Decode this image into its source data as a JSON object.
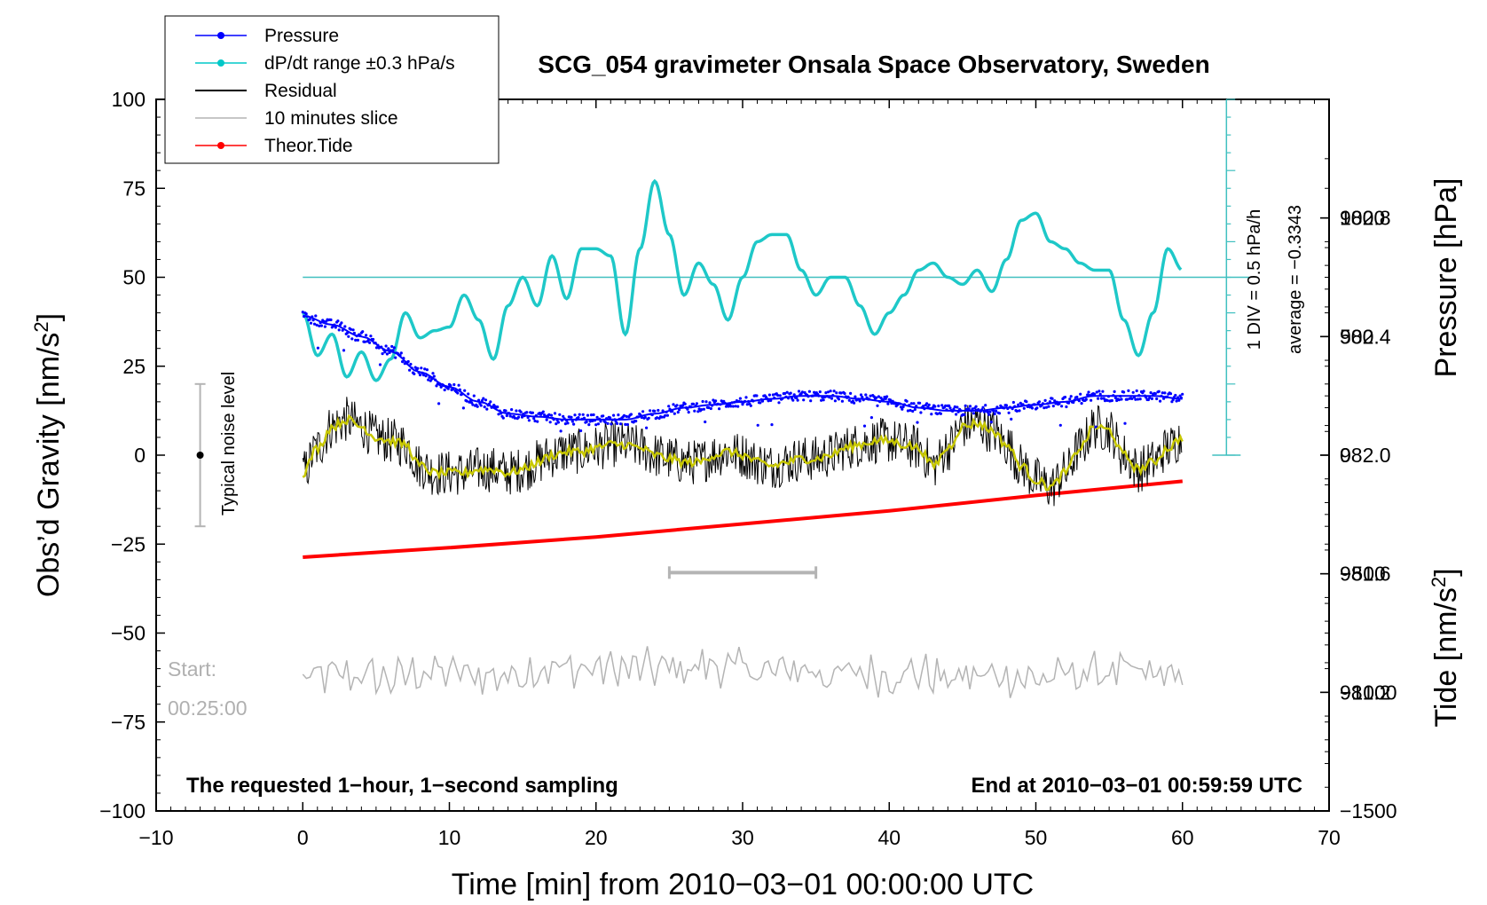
{
  "chart_data": {
    "type": "line",
    "title": "SCG_054 gravimeter Onsala Space Observatory, Sweden",
    "xlabel": "Time [min] from 2010−03−01 00:00:00 UTC",
    "ylabel_left_text": "Obs’d Gravity [nm/s",
    "ylabel_left_sup": "2",
    "ylabel_left_close": "]",
    "ylabel_right_pressure": "Pressure [hPa]",
    "ylabel_right_tide_text": "Tide [nm/s",
    "ylabel_right_tide_sup": "2",
    "ylabel_right_tide_close": "]",
    "xlim": [
      -10,
      70
    ],
    "ylim_left": [
      -100,
      100
    ],
    "ylim_pressure": [
      980.8,
      983.2
    ],
    "ylim_tide": [
      -1500,
      1500
    ],
    "x_ticks": [
      {
        "v": -10,
        "label": "−10"
      },
      {
        "v": 0,
        "label": "0"
      },
      {
        "v": 10,
        "label": "10"
      },
      {
        "v": 20,
        "label": "20"
      },
      {
        "v": 30,
        "label": "30"
      },
      {
        "v": 40,
        "label": "40"
      },
      {
        "v": 50,
        "label": "50"
      },
      {
        "v": 60,
        "label": "60"
      },
      {
        "v": 70,
        "label": "70"
      }
    ],
    "y_ticks_left": [
      {
        "v": 100,
        "label": "100"
      },
      {
        "v": 75,
        "label": "75"
      },
      {
        "v": 50,
        "label": "50"
      },
      {
        "v": 25,
        "label": "25"
      },
      {
        "v": 0,
        "label": "0"
      },
      {
        "v": -25,
        "label": "−25"
      },
      {
        "v": -50,
        "label": "−50"
      },
      {
        "v": -75,
        "label": "−75"
      },
      {
        "v": -100,
        "label": "−100"
      }
    ],
    "y_ticks_pressure": [
      {
        "v": 982.8,
        "label": "982.8"
      },
      {
        "v": 982.4,
        "label": "982.4"
      },
      {
        "v": 982.0,
        "label": "982.0"
      },
      {
        "v": 981.6,
        "label": "981.6"
      },
      {
        "v": 981.2,
        "label": "981.2"
      }
    ],
    "y_ticks_tide": [
      {
        "v": 1000,
        "label": "1000"
      },
      {
        "v": 500,
        "label": "500"
      },
      {
        "v": 0,
        "label": "0"
      },
      {
        "v": -500,
        "label": "−500"
      },
      {
        "v": -1000,
        "label": "−1000"
      },
      {
        "v": -1500,
        "label": "−1500"
      }
    ],
    "legend": [
      {
        "label": "Pressure",
        "color": "#0000ff",
        "marker": true
      },
      {
        "label": "dP/dt range ±0.3 hPa/s",
        "color": "#00c8c8",
        "marker": true
      },
      {
        "label": "Residual",
        "color": "#000000",
        "marker": false
      },
      {
        "label": "10 minutes slice",
        "color": "#b4b4b4",
        "marker": false
      },
      {
        "label": "Theor.Tide",
        "color": "#ff0000",
        "marker": true
      }
    ],
    "colors": {
      "pressure": "#0000ff",
      "dpdt": "#1ec8c8",
      "residual": "#000000",
      "smooth": "#c8c800",
      "slice": "#b4b4b4",
      "tide": "#ff0000",
      "refline": "#40c0c0"
    },
    "series": [
      {
        "name": "Pressure",
        "axis": "pressure",
        "x": [
          0,
          2,
          4,
          6,
          8,
          10,
          12,
          14,
          16,
          18,
          20,
          22,
          24,
          26,
          28,
          30,
          32,
          34,
          36,
          38,
          40,
          42,
          44,
          46,
          48,
          50,
          52,
          54,
          56,
          58,
          60
        ],
        "values": [
          982.47,
          982.44,
          982.4,
          982.35,
          982.28,
          982.23,
          982.18,
          982.14,
          982.13,
          982.12,
          982.12,
          982.12,
          982.14,
          982.16,
          982.17,
          982.18,
          982.19,
          982.2,
          982.2,
          982.19,
          982.18,
          982.16,
          982.15,
          982.15,
          982.16,
          982.17,
          982.18,
          982.2,
          982.2,
          982.2,
          982.19
        ]
      },
      {
        "name": "dP/dt range ±0.3 hPa/s",
        "axis": "left",
        "x": [
          0,
          1,
          2,
          3,
          4,
          5,
          6,
          7,
          8,
          9,
          10,
          11,
          12,
          13,
          14,
          15,
          16,
          17,
          18,
          19,
          20,
          21,
          22,
          23,
          24,
          25,
          26,
          27,
          28,
          29,
          30,
          31,
          32,
          33,
          34,
          35,
          36,
          37,
          38,
          39,
          40,
          41,
          42,
          43,
          44,
          45,
          46,
          47,
          48,
          49,
          50,
          51,
          52,
          53,
          54,
          55,
          56,
          57,
          58,
          59,
          60
        ],
        "values": [
          40,
          28,
          34,
          22,
          29,
          21,
          27,
          40,
          33,
          35,
          36,
          45,
          38,
          27,
          42,
          50,
          42,
          56,
          44,
          58,
          58,
          56,
          34,
          58,
          77,
          62,
          45,
          54,
          48,
          38,
          50,
          60,
          62,
          62,
          52,
          45,
          50,
          50,
          42,
          34,
          40,
          45,
          52,
          54,
          50,
          48,
          52,
          46,
          55,
          66,
          68,
          60,
          58,
          54,
          52,
          52,
          38,
          28,
          40,
          58,
          52
        ]
      },
      {
        "name": "Residual",
        "axis": "left",
        "x": [
          0,
          1,
          2,
          3,
          4,
          5,
          6,
          7,
          8,
          9,
          10,
          11,
          12,
          13,
          14,
          15,
          16,
          17,
          18,
          19,
          20,
          21,
          22,
          23,
          24,
          25,
          26,
          27,
          28,
          29,
          30,
          31,
          32,
          33,
          34,
          35,
          36,
          37,
          38,
          39,
          40,
          41,
          42,
          43,
          44,
          45,
          46,
          47,
          48,
          49,
          50,
          51,
          52,
          53,
          54,
          55,
          56,
          57,
          58,
          59,
          60
        ],
        "values": [
          -5,
          2,
          8,
          10,
          8,
          5,
          4,
          3,
          -3,
          -5,
          -5,
          -5,
          -4,
          -4,
          -5,
          -4,
          -2,
          0,
          1,
          1,
          2,
          3,
          3,
          2,
          0,
          -1,
          -2,
          -2,
          0,
          1,
          0,
          -2,
          -3,
          -2,
          -1,
          -1,
          0,
          2,
          3,
          4,
          4,
          3,
          2,
          -3,
          2,
          8,
          9,
          7,
          3,
          -3,
          -7,
          -9,
          -5,
          2,
          8,
          7,
          0,
          -4,
          -2,
          2,
          5
        ]
      },
      {
        "name": "10 minutes slice",
        "axis": "left",
        "x": [
          0,
          2,
          4,
          6,
          8,
          10,
          12,
          14,
          16,
          18,
          20,
          22,
          24,
          26,
          28,
          30,
          32,
          34,
          36,
          38,
          40,
          42,
          44,
          46,
          48,
          50,
          52,
          54,
          56,
          58,
          60
        ],
        "values": [
          -63,
          -62,
          -62,
          -63,
          -61,
          -61,
          -62,
          -62,
          -60,
          -60,
          -60,
          -60,
          -60,
          -60,
          -59,
          -60,
          -61,
          -60,
          -62,
          -61,
          -62,
          -61,
          -63,
          -62,
          -62,
          -63,
          -62,
          -61,
          -61,
          -62,
          -61
        ]
      },
      {
        "name": "Theor.Tide",
        "axis": "tide",
        "x": [
          0,
          10,
          20,
          30,
          40,
          50,
          60
        ],
        "values": [
          -430,
          -390,
          -345,
          -290,
          -235,
          -170,
          -110
        ]
      }
    ],
    "reference_line": {
      "x": [
        0,
        63
      ],
      "y": 50,
      "axis": "left"
    },
    "interval_bar": {
      "x": [
        25,
        35
      ],
      "y": -33,
      "axis": "left"
    },
    "noise_bar": {
      "x": -7,
      "ylow": -20,
      "yhigh": 20,
      "ymid": 0
    },
    "dpdt_scale": {
      "x": 63,
      "ylow": 0,
      "yhigh": 100,
      "divisions": 20
    }
  },
  "annotations": {
    "noise_label": "Typical noise level",
    "scale_label": "1 DIV = 0.5 hPa/h",
    "average_label": "average = −0.3343",
    "start_label": "Start:",
    "start_time": "00:25:00",
    "bottom_left": "The requested 1−hour, 1−second sampling",
    "bottom_right": "End at 2010−03−01 00:59:59 UTC"
  }
}
